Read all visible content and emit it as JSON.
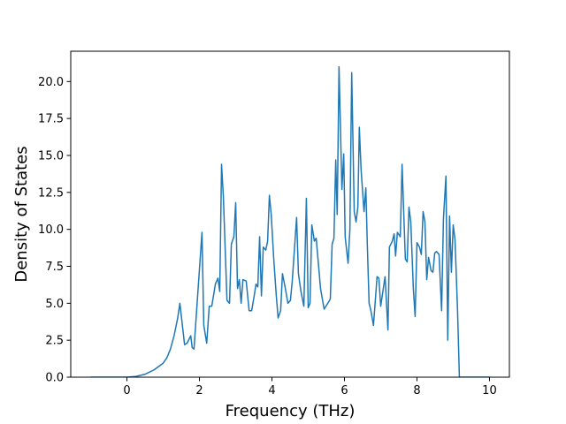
{
  "chart_data": {
    "type": "line",
    "x_label": "Frequency (THz)",
    "y_label": "Density of States",
    "xlim": [
      -1.55,
      10.55
    ],
    "ylim": [
      0,
      22.05
    ],
    "xticks": [
      0,
      2,
      4,
      6,
      8,
      10
    ],
    "yticks": [
      {
        "value": 0,
        "label": "0.0"
      },
      2.5,
      {
        "value": 5,
        "label": "5.0"
      },
      7.5,
      {
        "value": 10,
        "label": "10.0"
      },
      12.5,
      {
        "value": 15,
        "label": "15.0"
      },
      17.5,
      {
        "value": 20,
        "label": "20.0"
      }
    ],
    "grid": false,
    "series": [
      {
        "color": "#1f77b4",
        "x": [
          -1,
          -0.5,
          0,
          0.25,
          0.5,
          0.75,
          1.0,
          1.1,
          1.2,
          1.3,
          1.4,
          1.46,
          1.59,
          1.66,
          1.76,
          1.8,
          1.85,
          1.95,
          2.07,
          2.12,
          2.2,
          2.27,
          2.34,
          2.44,
          2.51,
          2.56,
          2.61,
          2.66,
          2.76,
          2.83,
          2.88,
          2.95,
          3.0,
          3.05,
          3.1,
          3.15,
          3.2,
          3.29,
          3.37,
          3.44,
          3.51,
          3.56,
          3.61,
          3.66,
          3.71,
          3.76,
          3.83,
          3.88,
          3.93,
          3.98,
          4.05,
          4.12,
          4.17,
          4.24,
          4.29,
          4.37,
          4.44,
          4.51,
          4.56,
          4.68,
          4.73,
          4.8,
          4.88,
          4.95,
          5.0,
          5.05,
          5.1,
          5.17,
          5.22,
          5.27,
          5.34,
          5.44,
          5.59,
          5.61,
          5.66,
          5.71,
          5.76,
          5.8,
          5.85,
          5.93,
          5.98,
          6.02,
          6.1,
          6.15,
          6.2,
          6.27,
          6.32,
          6.37,
          6.41,
          6.46,
          6.54,
          6.59,
          6.63,
          6.68,
          6.73,
          6.8,
          6.9,
          6.95,
          7.0,
          7.12,
          7.2,
          7.24,
          7.32,
          7.37,
          7.41,
          7.46,
          7.54,
          7.59,
          7.63,
          7.68,
          7.73,
          7.78,
          7.83,
          7.9,
          7.95,
          8.0,
          8.07,
          8.12,
          8.17,
          8.22,
          8.27,
          8.32,
          8.39,
          8.44,
          8.49,
          8.54,
          8.61,
          8.68,
          8.73,
          8.8,
          8.85,
          8.9,
          8.95,
          9.0,
          9.05,
          9.12,
          9.17,
          9.5,
          10
        ],
        "values": [
          0,
          0,
          0,
          0.05,
          0.2,
          0.5,
          0.95,
          1.3,
          1.9,
          2.8,
          4.0,
          5.0,
          2.2,
          2.3,
          2.8,
          2.0,
          1.9,
          5.5,
          9.8,
          3.5,
          2.3,
          4.8,
          4.8,
          6.3,
          6.7,
          5.8,
          14.4,
          12.2,
          5.2,
          5.0,
          9.0,
          9.5,
          11.8,
          6.0,
          6.6,
          5.0,
          6.6,
          6.5,
          4.5,
          4.5,
          5.5,
          6.3,
          6.1,
          9.5,
          5.5,
          8.8,
          8.6,
          9.2,
          12.3,
          11.0,
          8.0,
          5.5,
          4.0,
          4.5,
          7.0,
          6.0,
          5.0,
          5.2,
          6.5,
          10.8,
          7.0,
          5.8,
          4.8,
          12.1,
          4.7,
          5.0,
          10.3,
          9.2,
          9.4,
          8.0,
          6.0,
          4.6,
          5.2,
          5.3,
          9.0,
          9.4,
          14.7,
          11.0,
          21.0,
          12.7,
          15.1,
          9.5,
          7.7,
          10.0,
          20.6,
          11.2,
          10.5,
          11.5,
          16.9,
          14.0,
          11.2,
          12.8,
          9.0,
          5.0,
          4.5,
          3.5,
          6.8,
          6.7,
          4.8,
          6.8,
          3.2,
          8.8,
          9.2,
          9.7,
          8.2,
          9.8,
          9.5,
          14.4,
          11.5,
          8.0,
          7.8,
          11.5,
          10.5,
          6.0,
          4.1,
          9.1,
          8.8,
          8.3,
          11.2,
          10.5,
          6.6,
          8.1,
          7.2,
          7.1,
          8.4,
          8.5,
          8.3,
          4.5,
          10.7,
          13.6,
          2.5,
          10.9,
          7.1,
          10.3,
          9.3,
          4.5,
          0,
          0,
          0
        ]
      }
    ]
  }
}
